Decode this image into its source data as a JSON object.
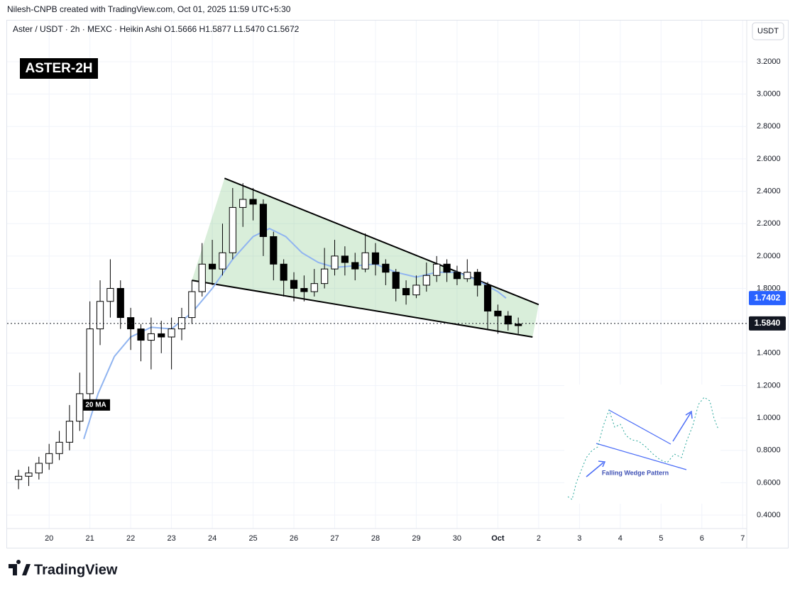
{
  "header": {
    "credit": "Nilesh-CNPB created with TradingView.com, Oct 01, 2025 11:59 UTC+5:30",
    "symbol_line": "Aster / USDT · 2h · MEXC · Heikin Ashi  O1.5666 H1.5877 L1.5470 C1.5672",
    "currency": "USDT"
  },
  "chart_data": {
    "type": "candlestick",
    "title": "ASTER-2H",
    "x": [
      -0.75,
      -0.5,
      -0.25,
      0,
      0.25,
      0.5,
      0.75,
      1,
      1.25,
      1.5,
      1.75,
      2,
      2.25,
      2.5,
      2.75,
      3,
      3.25,
      3.5,
      3.75,
      4,
      4.25,
      4.5,
      4.75,
      5,
      5.25,
      5.5,
      5.75,
      6,
      6.25,
      6.5,
      6.75,
      7,
      7.25,
      7.5,
      7.75,
      8,
      8.25,
      8.5,
      8.75,
      9,
      9.25,
      9.5,
      9.75,
      10,
      10.25,
      10.5,
      10.75,
      11,
      11.25,
      11.5
    ],
    "open": [
      0.62,
      0.64,
      0.66,
      0.72,
      0.78,
      0.85,
      0.98,
      1.15,
      1.55,
      1.72,
      1.8,
      1.62,
      1.55,
      1.48,
      1.52,
      1.5,
      1.55,
      1.62,
      1.78,
      1.95,
      1.92,
      2.02,
      2.3,
      2.35,
      2.32,
      2.12,
      1.95,
      1.85,
      1.8,
      1.78,
      1.83,
      1.92,
      2.0,
      1.96,
      1.92,
      2.02,
      1.95,
      1.9,
      1.8,
      1.76,
      1.82,
      1.88,
      1.95,
      1.9,
      1.86,
      1.9,
      1.82,
      1.66,
      1.63,
      1.58
    ],
    "high": [
      0.68,
      0.7,
      0.76,
      0.84,
      0.92,
      1.08,
      1.28,
      1.72,
      1.85,
      1.98,
      1.85,
      1.68,
      1.58,
      1.62,
      1.6,
      1.62,
      1.68,
      1.85,
      2.08,
      2.1,
      2.2,
      2.42,
      2.45,
      2.42,
      2.35,
      2.15,
      1.98,
      1.9,
      1.88,
      1.92,
      2.05,
      2.1,
      2.06,
      2.02,
      2.14,
      2.08,
      1.98,
      1.92,
      1.85,
      1.88,
      1.96,
      2.0,
      1.98,
      1.94,
      1.98,
      1.92,
      1.84,
      1.7,
      1.66,
      1.62
    ],
    "low": [
      0.56,
      0.58,
      0.62,
      0.68,
      0.74,
      0.8,
      0.92,
      1.1,
      1.45,
      1.62,
      1.55,
      1.42,
      1.35,
      1.3,
      1.4,
      1.3,
      1.48,
      1.58,
      1.75,
      1.82,
      1.88,
      1.98,
      2.18,
      2.22,
      2.0,
      1.85,
      1.75,
      1.72,
      1.72,
      1.75,
      1.8,
      1.88,
      1.88,
      1.85,
      1.9,
      1.88,
      1.82,
      1.72,
      1.7,
      1.74,
      1.78,
      1.84,
      1.84,
      1.82,
      1.84,
      1.75,
      1.55,
      1.52,
      1.54,
      1.52
    ],
    "close": [
      0.64,
      0.66,
      0.72,
      0.78,
      0.85,
      0.98,
      1.15,
      1.55,
      1.72,
      1.8,
      1.62,
      1.55,
      1.48,
      1.52,
      1.5,
      1.55,
      1.62,
      1.78,
      1.95,
      1.92,
      2.02,
      2.3,
      2.35,
      2.32,
      2.12,
      1.95,
      1.85,
      1.8,
      1.78,
      1.83,
      1.92,
      2.0,
      1.96,
      1.92,
      2.02,
      1.95,
      1.9,
      1.8,
      1.76,
      1.82,
      1.88,
      1.95,
      1.9,
      1.86,
      1.9,
      1.82,
      1.66,
      1.63,
      1.58,
      1.57
    ],
    "ma": {
      "name": "20 MA",
      "color": "#90b4f0",
      "x": [
        0.85,
        1.2,
        1.6,
        2.0,
        2.5,
        3.0,
        3.5,
        4.0,
        4.5,
        5.0,
        5.4,
        5.8,
        6.2,
        6.6,
        7.0,
        7.5,
        8.0,
        8.5,
        9.0,
        9.5,
        10.0,
        10.5,
        11.0,
        11.2
      ],
      "values": [
        0.87,
        1.15,
        1.38,
        1.5,
        1.56,
        1.55,
        1.65,
        1.8,
        1.98,
        2.12,
        2.17,
        2.12,
        2.02,
        1.96,
        1.93,
        1.94,
        1.95,
        1.9,
        1.87,
        1.9,
        1.9,
        1.85,
        1.78,
        1.74
      ]
    },
    "wedge": {
      "upper_x": [
        4.3,
        12.0
      ],
      "upper": [
        2.48,
        1.7
      ],
      "lower_x": [
        3.5,
        11.85
      ],
      "lower": [
        1.85,
        1.5
      ]
    },
    "ma_last": {
      "value": 1.7402,
      "label": "1.7402"
    },
    "last_price": {
      "value": 1.584,
      "label": "1.5840"
    },
    "xlim": [
      -1.03,
      17.1
    ],
    "xticks": [
      {
        "value": 0,
        "label": "20"
      },
      {
        "value": 1,
        "label": "21"
      },
      {
        "value": 2,
        "label": "22"
      },
      {
        "value": 3,
        "label": "23"
      },
      {
        "value": 4,
        "label": "24"
      },
      {
        "value": 5,
        "label": "25"
      },
      {
        "value": 6,
        "label": "26"
      },
      {
        "value": 7,
        "label": "27"
      },
      {
        "value": 8,
        "label": "28"
      },
      {
        "value": 9,
        "label": "29"
      },
      {
        "value": 10,
        "label": "30"
      },
      {
        "value": 11,
        "label": "Oct"
      },
      {
        "value": 12,
        "label": "2"
      },
      {
        "value": 13,
        "label": "3"
      },
      {
        "value": 14,
        "label": "4"
      },
      {
        "value": 15,
        "label": "5"
      },
      {
        "value": 16,
        "label": "6"
      },
      {
        "value": 17,
        "label": "7"
      }
    ],
    "ylim": [
      0.317,
      3.454
    ],
    "yticks": [
      {
        "value": 0.4,
        "label": "0.4000"
      },
      {
        "value": 0.6,
        "label": "0.6000"
      },
      {
        "value": 0.8,
        "label": "0.8000"
      },
      {
        "value": 1.0,
        "label": "1.0000"
      },
      {
        "value": 1.2,
        "label": "1.2000"
      },
      {
        "value": 1.4,
        "label": "1.4000"
      },
      {
        "value": 1.6,
        "label": "1.6000"
      },
      {
        "value": 1.8,
        "label": "1.8000"
      },
      {
        "value": 2.0,
        "label": "2.0000"
      },
      {
        "value": 2.2,
        "label": "2.2000"
      },
      {
        "value": 2.4,
        "label": "2.4000"
      },
      {
        "value": 2.6,
        "label": "2.6000"
      },
      {
        "value": 2.8,
        "label": "2.8000"
      },
      {
        "value": 3.0,
        "label": "3.0000"
      },
      {
        "value": 3.2,
        "label": "3.2000"
      }
    ],
    "grid": true,
    "inset_label": "Falling Wedge Pattern"
  },
  "footer": {
    "brand": "TradingView"
  }
}
